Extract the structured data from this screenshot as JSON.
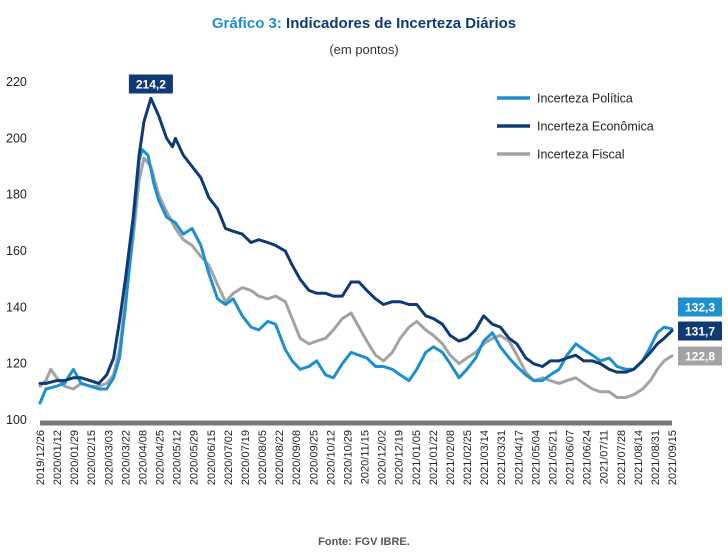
{
  "header": {
    "title_prefix": "Gráfico 3:",
    "title_main": " Indicadores de Incerteza Diários",
    "subtitle": "(em pontos)"
  },
  "source": "Fonte: FGV IBRE.",
  "colors": {
    "politica": "#1E90CF",
    "economica": "#0F3A73",
    "fiscal": "#A3A3A3",
    "title_accent": "#1E90CF",
    "title_dark": "#0F3A73"
  },
  "chart_data": {
    "type": "line",
    "title": "Indicadores de Incerteza Diários",
    "subtitle": "(em pontos)",
    "ylim": [
      100,
      220
    ],
    "yticks": [
      100,
      120,
      140,
      160,
      180,
      200,
      220
    ],
    "grid": false,
    "legend_position": "top-right",
    "x_start": "2019-12-26",
    "x_end": "2021-09-30",
    "x_tick_labels": [
      "2019/12/26",
      "2020/01/12",
      "2020/01/29",
      "2020/02/15",
      "2020/03/03",
      "2020/03/22",
      "2020/04/08",
      "2020/04/25",
      "2020/05/12",
      "2020/05/29",
      "2020/06/15",
      "2020/07/02",
      "2020/07/19",
      "2020/08/05",
      "2020/08/22",
      "2020/09/08",
      "2020/09/25",
      "2020/10/12",
      "2020/10/29",
      "2020/11/15",
      "2020/12/02",
      "2020/12/19",
      "2021/01/05",
      "2021/01/22",
      "2021/02/08",
      "2021/02/25",
      "2021/03/14",
      "2021/03/31",
      "2021/04/17",
      "2021/05/04",
      "2021/05/21",
      "2021/06/07",
      "2021/06/24",
      "2021/07/11",
      "2021/07/28",
      "2021/08/14",
      "2021/08/31",
      "2021/09/15"
    ],
    "series": [
      {
        "name": "Incerteza Política",
        "color": "#1E90CF",
        "last_label": "132,3",
        "points": [
          [
            "2019-12-26",
            106
          ],
          [
            "2020-01-01",
            111
          ],
          [
            "2020-01-12",
            112
          ],
          [
            "2020-01-20",
            113
          ],
          [
            "2020-01-29",
            118
          ],
          [
            "2020-02-06",
            113
          ],
          [
            "2020-02-15",
            112
          ],
          [
            "2020-02-24",
            111
          ],
          [
            "2020-03-03",
            111
          ],
          [
            "2020-03-10",
            115
          ],
          [
            "2020-03-16",
            122
          ],
          [
            "2020-03-22",
            140
          ],
          [
            "2020-03-30",
            168
          ],
          [
            "2020-04-05",
            192
          ],
          [
            "2020-04-08",
            196
          ],
          [
            "2020-04-14",
            194
          ],
          [
            "2020-04-20",
            184
          ],
          [
            "2020-04-25",
            178
          ],
          [
            "2020-05-03",
            172
          ],
          [
            "2020-05-12",
            170
          ],
          [
            "2020-05-20",
            166
          ],
          [
            "2020-05-29",
            168
          ],
          [
            "2020-06-07",
            162
          ],
          [
            "2020-06-15",
            152
          ],
          [
            "2020-06-24",
            143
          ],
          [
            "2020-07-02",
            141
          ],
          [
            "2020-07-10",
            143
          ],
          [
            "2020-07-19",
            137
          ],
          [
            "2020-07-28",
            133
          ],
          [
            "2020-08-05",
            132
          ],
          [
            "2020-08-14",
            135
          ],
          [
            "2020-08-22",
            134
          ],
          [
            "2020-09-01",
            125
          ],
          [
            "2020-09-08",
            121
          ],
          [
            "2020-09-16",
            118
          ],
          [
            "2020-09-25",
            119
          ],
          [
            "2020-10-03",
            121
          ],
          [
            "2020-10-12",
            116
          ],
          [
            "2020-10-20",
            115
          ],
          [
            "2020-10-29",
            120
          ],
          [
            "2020-11-07",
            124
          ],
          [
            "2020-11-15",
            123
          ],
          [
            "2020-11-23",
            122
          ],
          [
            "2020-12-02",
            119
          ],
          [
            "2020-12-10",
            119
          ],
          [
            "2020-12-19",
            118
          ],
          [
            "2020-12-27",
            116
          ],
          [
            "2021-01-05",
            114
          ],
          [
            "2021-01-13",
            118
          ],
          [
            "2021-01-22",
            124
          ],
          [
            "2021-01-30",
            126
          ],
          [
            "2021-02-08",
            124
          ],
          [
            "2021-02-16",
            120
          ],
          [
            "2021-02-25",
            115
          ],
          [
            "2021-03-05",
            118
          ],
          [
            "2021-03-14",
            122
          ],
          [
            "2021-03-22",
            128
          ],
          [
            "2021-03-31",
            131
          ],
          [
            "2021-04-08",
            126
          ],
          [
            "2021-04-17",
            122
          ],
          [
            "2021-04-25",
            119
          ],
          [
            "2021-05-04",
            116
          ],
          [
            "2021-05-12",
            114
          ],
          [
            "2021-05-21",
            114
          ],
          [
            "2021-05-29",
            116
          ],
          [
            "2021-06-07",
            118
          ],
          [
            "2021-06-15",
            123
          ],
          [
            "2021-06-24",
            127
          ],
          [
            "2021-07-02",
            125
          ],
          [
            "2021-07-11",
            123
          ],
          [
            "2021-07-19",
            121
          ],
          [
            "2021-07-28",
            122
          ],
          [
            "2021-08-05",
            119
          ],
          [
            "2021-08-14",
            118
          ],
          [
            "2021-08-22",
            118
          ],
          [
            "2021-08-31",
            121
          ],
          [
            "2021-09-08",
            126
          ],
          [
            "2021-09-15",
            131
          ],
          [
            "2021-09-22",
            133
          ],
          [
            "2021-09-30",
            132.3
          ]
        ]
      },
      {
        "name": "Incerteza Econômica",
        "color": "#0F3A73",
        "last_label": "131,7",
        "max_label": "214,2",
        "max_date": "2020-04-17",
        "points": [
          [
            "2019-12-26",
            113
          ],
          [
            "2020-01-01",
            113
          ],
          [
            "2020-01-12",
            114
          ],
          [
            "2020-01-20",
            114
          ],
          [
            "2020-01-29",
            115
          ],
          [
            "2020-02-06",
            115
          ],
          [
            "2020-02-15",
            114
          ],
          [
            "2020-02-24",
            113
          ],
          [
            "2020-03-03",
            116
          ],
          [
            "2020-03-10",
            122
          ],
          [
            "2020-03-16",
            135
          ],
          [
            "2020-03-22",
            150
          ],
          [
            "2020-03-30",
            172
          ],
          [
            "2020-04-05",
            194
          ],
          [
            "2020-04-10",
            206
          ],
          [
            "2020-04-17",
            214.2
          ],
          [
            "2020-04-25",
            208
          ],
          [
            "2020-05-03",
            200
          ],
          [
            "2020-05-09",
            197
          ],
          [
            "2020-05-12",
            200
          ],
          [
            "2020-05-20",
            194
          ],
          [
            "2020-05-29",
            190
          ],
          [
            "2020-06-07",
            186
          ],
          [
            "2020-06-15",
            179
          ],
          [
            "2020-06-24",
            175
          ],
          [
            "2020-07-02",
            168
          ],
          [
            "2020-07-10",
            167
          ],
          [
            "2020-07-19",
            166
          ],
          [
            "2020-07-28",
            163
          ],
          [
            "2020-08-05",
            164
          ],
          [
            "2020-08-14",
            163
          ],
          [
            "2020-08-22",
            162
          ],
          [
            "2020-09-01",
            160
          ],
          [
            "2020-09-08",
            155
          ],
          [
            "2020-09-16",
            150
          ],
          [
            "2020-09-25",
            146
          ],
          [
            "2020-10-03",
            145
          ],
          [
            "2020-10-12",
            145
          ],
          [
            "2020-10-20",
            144
          ],
          [
            "2020-10-29",
            144
          ],
          [
            "2020-11-07",
            149
          ],
          [
            "2020-11-15",
            149
          ],
          [
            "2020-11-23",
            146
          ],
          [
            "2020-12-02",
            143
          ],
          [
            "2020-12-10",
            141
          ],
          [
            "2020-12-19",
            142
          ],
          [
            "2020-12-27",
            142
          ],
          [
            "2021-01-05",
            141
          ],
          [
            "2021-01-13",
            141
          ],
          [
            "2021-01-22",
            137
          ],
          [
            "2021-01-30",
            136
          ],
          [
            "2021-02-08",
            134
          ],
          [
            "2021-02-16",
            130
          ],
          [
            "2021-02-25",
            128
          ],
          [
            "2021-03-05",
            129
          ],
          [
            "2021-03-14",
            132
          ],
          [
            "2021-03-22",
            137
          ],
          [
            "2021-03-31",
            134
          ],
          [
            "2021-04-08",
            133
          ],
          [
            "2021-04-17",
            129
          ],
          [
            "2021-04-25",
            127
          ],
          [
            "2021-05-04",
            122
          ],
          [
            "2021-05-12",
            120
          ],
          [
            "2021-05-21",
            119
          ],
          [
            "2021-05-29",
            121
          ],
          [
            "2021-06-07",
            121
          ],
          [
            "2021-06-15",
            122
          ],
          [
            "2021-06-24",
            123
          ],
          [
            "2021-07-02",
            121
          ],
          [
            "2021-07-11",
            121
          ],
          [
            "2021-07-19",
            120
          ],
          [
            "2021-07-28",
            118
          ],
          [
            "2021-08-05",
            117
          ],
          [
            "2021-08-14",
            117
          ],
          [
            "2021-08-22",
            118
          ],
          [
            "2021-08-31",
            121
          ],
          [
            "2021-09-08",
            124
          ],
          [
            "2021-09-15",
            127
          ],
          [
            "2021-09-22",
            129
          ],
          [
            "2021-09-30",
            131.7
          ]
        ]
      },
      {
        "name": "Incerteza Fiscal",
        "color": "#A3A3A3",
        "last_label": "122,8",
        "points": [
          [
            "2019-12-26",
            112
          ],
          [
            "2020-01-01",
            114
          ],
          [
            "2020-01-06",
            118
          ],
          [
            "2020-01-12",
            115
          ],
          [
            "2020-01-20",
            112
          ],
          [
            "2020-01-29",
            111
          ],
          [
            "2020-02-06",
            113
          ],
          [
            "2020-02-15",
            112
          ],
          [
            "2020-02-24",
            112
          ],
          [
            "2020-03-03",
            113
          ],
          [
            "2020-03-10",
            116
          ],
          [
            "2020-03-16",
            125
          ],
          [
            "2020-03-22",
            142
          ],
          [
            "2020-03-30",
            165
          ],
          [
            "2020-04-05",
            185
          ],
          [
            "2020-04-10",
            193
          ],
          [
            "2020-04-17",
            190
          ],
          [
            "2020-04-25",
            180
          ],
          [
            "2020-05-03",
            174
          ],
          [
            "2020-05-12",
            168
          ],
          [
            "2020-05-20",
            164
          ],
          [
            "2020-05-29",
            162
          ],
          [
            "2020-06-07",
            158
          ],
          [
            "2020-06-15",
            155
          ],
          [
            "2020-06-24",
            148
          ],
          [
            "2020-07-02",
            142
          ],
          [
            "2020-07-10",
            145
          ],
          [
            "2020-07-19",
            147
          ],
          [
            "2020-07-28",
            146
          ],
          [
            "2020-08-05",
            144
          ],
          [
            "2020-08-14",
            143
          ],
          [
            "2020-08-22",
            144
          ],
          [
            "2020-09-01",
            142
          ],
          [
            "2020-09-08",
            136
          ],
          [
            "2020-09-16",
            129
          ],
          [
            "2020-09-25",
            127
          ],
          [
            "2020-10-03",
            128
          ],
          [
            "2020-10-12",
            129
          ],
          [
            "2020-10-20",
            132
          ],
          [
            "2020-10-29",
            136
          ],
          [
            "2020-11-07",
            138
          ],
          [
            "2020-11-15",
            133
          ],
          [
            "2020-11-23",
            128
          ],
          [
            "2020-12-02",
            123
          ],
          [
            "2020-12-10",
            121
          ],
          [
            "2020-12-19",
            124
          ],
          [
            "2020-12-27",
            129
          ],
          [
            "2021-01-05",
            133
          ],
          [
            "2021-01-13",
            135
          ],
          [
            "2021-01-22",
            132
          ],
          [
            "2021-01-30",
            130
          ],
          [
            "2021-02-08",
            127
          ],
          [
            "2021-02-16",
            123
          ],
          [
            "2021-02-25",
            120
          ],
          [
            "2021-03-05",
            122
          ],
          [
            "2021-03-14",
            124
          ],
          [
            "2021-03-22",
            127
          ],
          [
            "2021-03-31",
            129
          ],
          [
            "2021-04-08",
            130
          ],
          [
            "2021-04-17",
            128
          ],
          [
            "2021-04-25",
            123
          ],
          [
            "2021-05-04",
            117
          ],
          [
            "2021-05-12",
            114
          ],
          [
            "2021-05-21",
            115
          ],
          [
            "2021-05-29",
            114
          ],
          [
            "2021-06-07",
            113
          ],
          [
            "2021-06-15",
            114
          ],
          [
            "2021-06-24",
            115
          ],
          [
            "2021-07-02",
            113
          ],
          [
            "2021-07-11",
            111
          ],
          [
            "2021-07-19",
            110
          ],
          [
            "2021-07-28",
            110
          ],
          [
            "2021-08-05",
            108
          ],
          [
            "2021-08-14",
            108
          ],
          [
            "2021-08-22",
            109
          ],
          [
            "2021-08-31",
            111
          ],
          [
            "2021-09-08",
            114
          ],
          [
            "2021-09-15",
            118
          ],
          [
            "2021-09-22",
            121
          ],
          [
            "2021-09-30",
            122.8
          ]
        ]
      }
    ]
  }
}
